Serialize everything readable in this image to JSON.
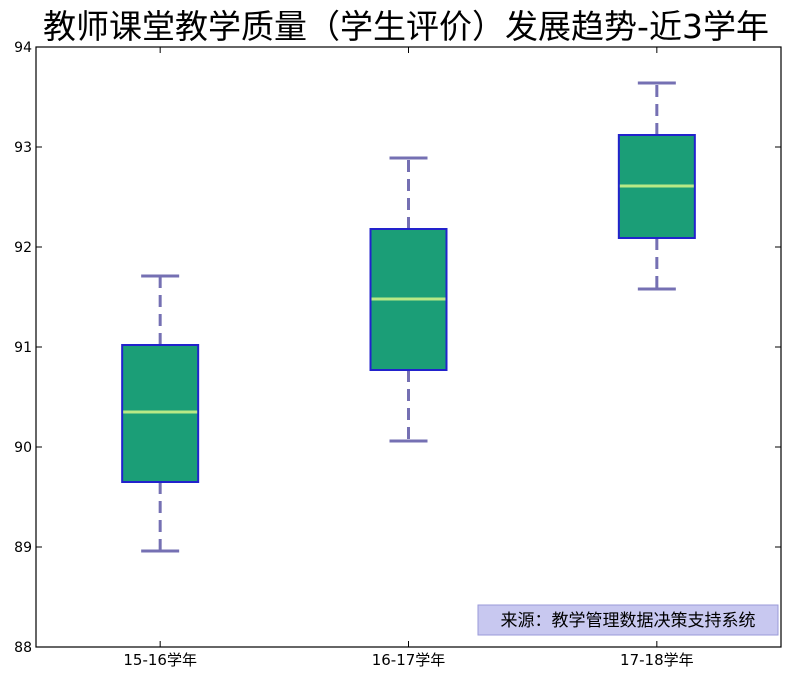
{
  "chart_data": {
    "type": "boxplot",
    "title": "教师课堂教学质量（学生评价）发展趋势-近3学年",
    "xlabel": "",
    "ylabel": "",
    "ylim": [
      88,
      94
    ],
    "yticks": [
      88,
      89,
      90,
      91,
      92,
      93,
      94
    ],
    "categories": [
      "15-16学年",
      "16-17学年",
      "17-18学年"
    ],
    "boxes": [
      {
        "category": "15-16学年",
        "whisker_low": 88.96,
        "q1": 89.65,
        "median": 90.35,
        "q3": 91.02,
        "whisker_high": 91.71
      },
      {
        "category": "16-17学年",
        "whisker_low": 90.06,
        "q1": 90.77,
        "median": 91.48,
        "q3": 92.18,
        "whisker_high": 92.89
      },
      {
        "category": "17-18学年",
        "whisker_low": 91.58,
        "q1": 92.09,
        "median": 92.61,
        "q3": 93.12,
        "whisker_high": 93.64
      }
    ],
    "grid": false,
    "colors": {
      "box_fill": "#1b9e77",
      "box_edge": "#2222cc",
      "median": "#b8e986",
      "whisker": "#7570b3"
    },
    "annotation": {
      "text": "来源：教学管理数据决策支持系统",
      "placement": "bottom-right",
      "background": "#c8c8f0"
    }
  }
}
